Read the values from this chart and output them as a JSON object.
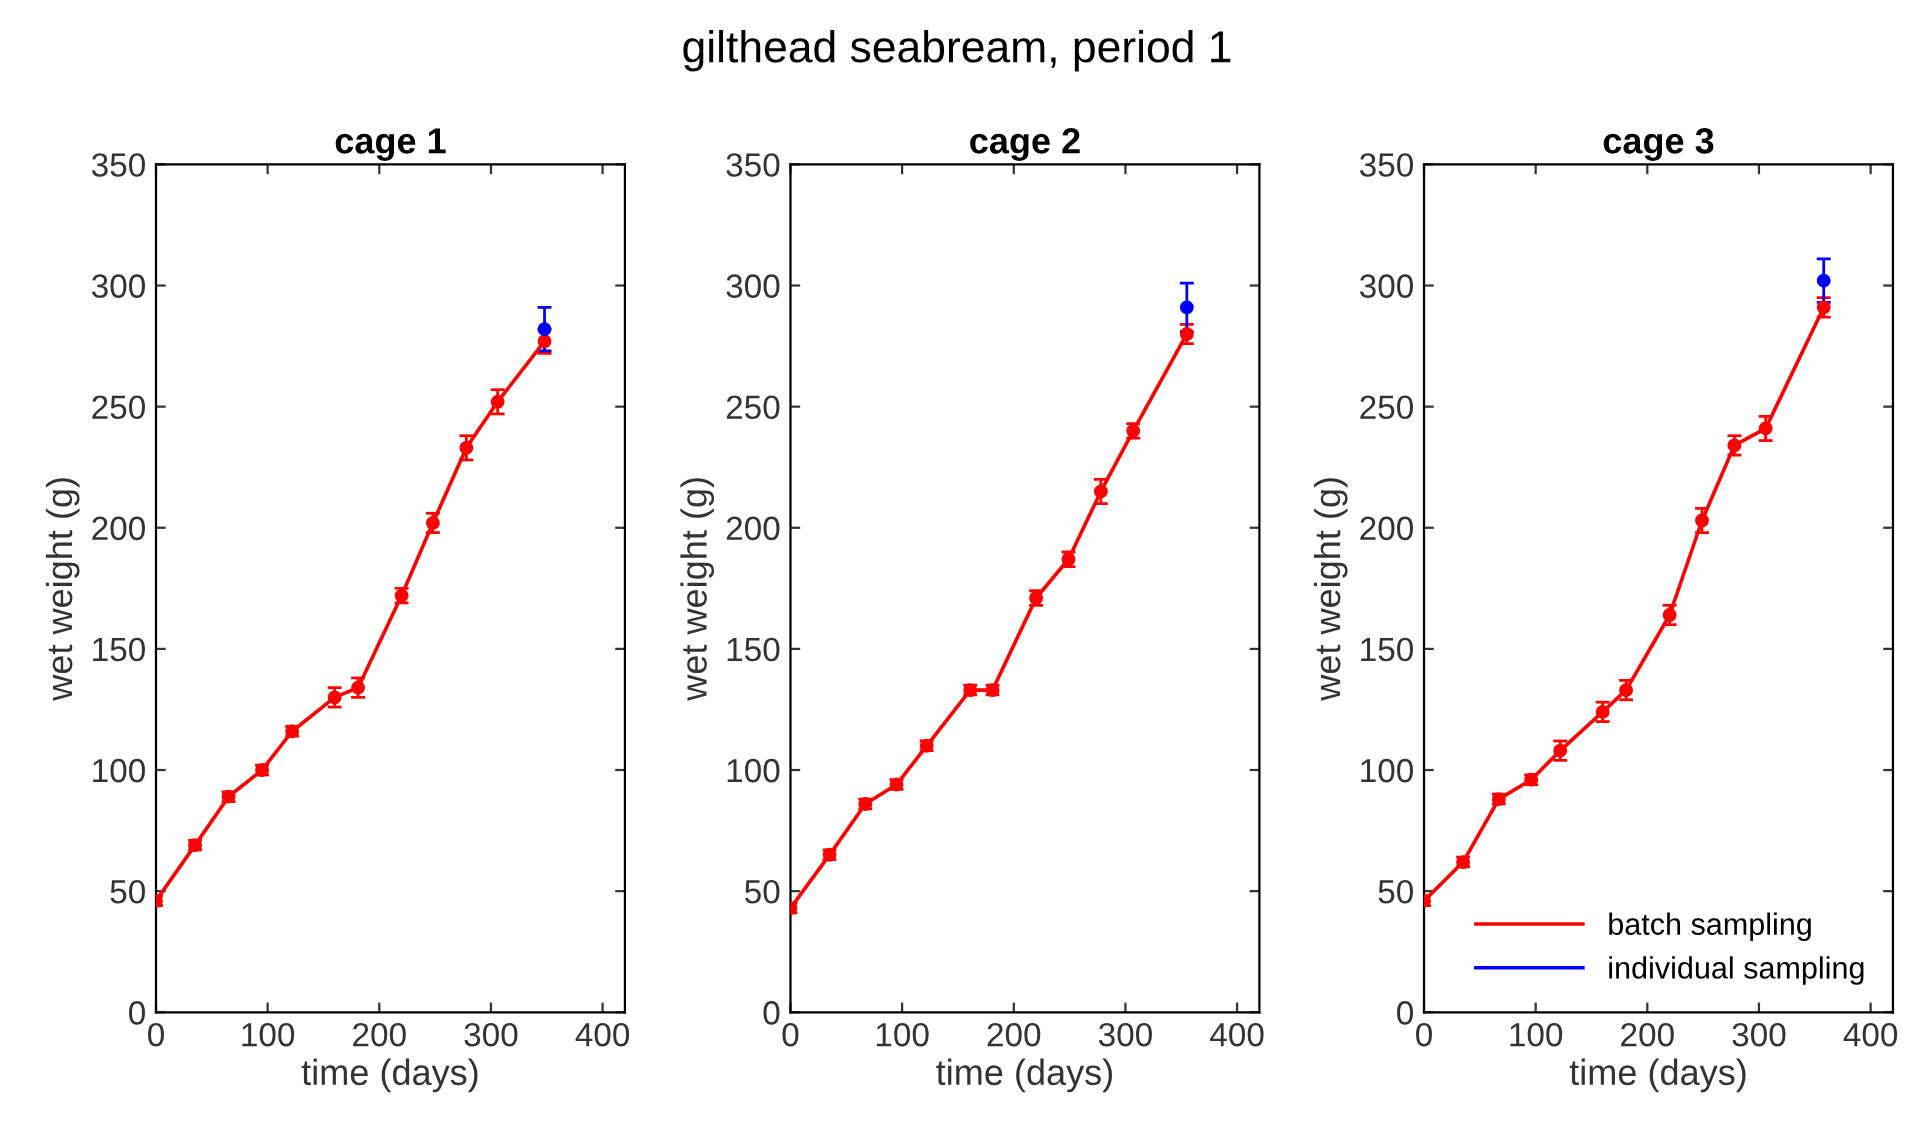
{
  "chart_data": [
    {
      "type": "line",
      "title": "cage 1",
      "xlabel": "time (days)",
      "ylabel": "wet weight (g)",
      "annotations": [
        "gilthead seabream, period 1"
      ],
      "xlim": [
        0,
        420
      ],
      "ylim": [
        0,
        350
      ],
      "xticks": [
        0,
        100,
        200,
        300,
        400
      ],
      "yticks": [
        0,
        50,
        100,
        150,
        200,
        250,
        300,
        350
      ],
      "grid": false,
      "legend": false,
      "marker": "circle",
      "line_style": "solid",
      "series": [
        {
          "color": "#ff0000",
          "x": [
            0,
            35,
            65,
            95,
            122,
            160,
            181,
            220,
            248,
            278,
            306,
            348
          ],
          "values": [
            46,
            69,
            89,
            100,
            116,
            130,
            134,
            172,
            202,
            233,
            252,
            277
          ],
          "errors": [
            2,
            2,
            2,
            2,
            2,
            4,
            4,
            3,
            4,
            5,
            5,
            5
          ]
        },
        {
          "type": "scatter",
          "color": "#0000ff",
          "x": [
            348
          ],
          "values": [
            282
          ],
          "errors": [
            9
          ]
        }
      ]
    },
    {
      "type": "line",
      "title": "cage 2",
      "xlabel": "time (days)",
      "ylabel": "wet weight (g)",
      "xlim": [
        0,
        420
      ],
      "ylim": [
        0,
        350
      ],
      "xticks": [
        0,
        100,
        200,
        300,
        400
      ],
      "yticks": [
        0,
        50,
        100,
        150,
        200,
        250,
        300,
        350
      ],
      "grid": false,
      "legend": false,
      "marker": "circle",
      "line_style": "solid",
      "series": [
        {
          "color": "#ff0000",
          "x": [
            0,
            35,
            67,
            95,
            122,
            161,
            181,
            220,
            249,
            278,
            307,
            355
          ],
          "values": [
            43,
            65,
            86,
            94,
            110,
            133,
            133,
            171,
            187,
            215,
            240,
            280
          ],
          "errors": [
            2,
            2,
            2,
            2,
            2,
            2,
            2,
            3,
            3,
            5,
            3,
            4
          ]
        },
        {
          "type": "scatter",
          "color": "#0000ff",
          "x": [
            355
          ],
          "values": [
            291
          ],
          "errors": [
            10
          ]
        }
      ]
    },
    {
      "type": "line",
      "title": "cage 3",
      "xlabel": "time (days)",
      "ylabel": "wet weight (g)",
      "xlim": [
        0,
        420
      ],
      "ylim": [
        0,
        350
      ],
      "xticks": [
        0,
        100,
        200,
        300,
        400
      ],
      "yticks": [
        0,
        50,
        100,
        150,
        200,
        250,
        300,
        350
      ],
      "grid": false,
      "legend": "bottom right",
      "marker": "circle",
      "line_style": "solid",
      "series": [
        {
          "name": "batch sampling",
          "color": "#ff0000",
          "x": [
            0,
            35,
            67,
            96,
            122,
            160,
            181,
            220,
            249,
            278,
            306,
            358
          ],
          "values": [
            46,
            62,
            88,
            96,
            108,
            124,
            133,
            164,
            203,
            234,
            241,
            291
          ],
          "errors": [
            2,
            2,
            2,
            2,
            4,
            4,
            4,
            4,
            5,
            4,
            5,
            4
          ]
        },
        {
          "name": "individual sampling",
          "type": "scatter",
          "color": "#0000ff",
          "x": [
            358
          ],
          "values": [
            302
          ],
          "errors": [
            9
          ]
        }
      ]
    }
  ]
}
